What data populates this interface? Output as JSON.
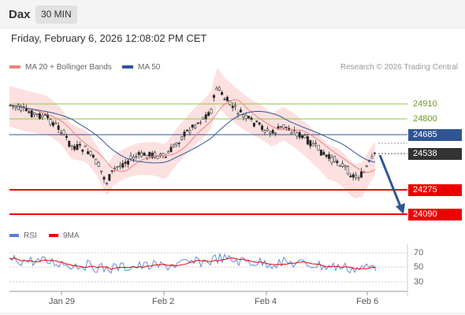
{
  "header": {
    "symbol": "Dax",
    "timeframe": "30 MIN",
    "datetime": "Friday, February 6, 2026 12:08:02 PM CET"
  },
  "legend": {
    "ma20": "MA 20 + Bollinger Bands",
    "ma50": "MA 50",
    "credit": "Research © 2026 Trading Central"
  },
  "levels": {
    "r2": "24910",
    "r1": "24800",
    "pivot": "24685",
    "last": "24538",
    "s1": "24275",
    "s2": "24090"
  },
  "rsi_legend": {
    "rsi": "RSI",
    "ma": "9MA"
  },
  "rsi_axis": {
    "t70": "70",
    "t50": "50",
    "t30": "30"
  },
  "x_axis": {
    "d1": "Jan 29",
    "d2": "Feb 2",
    "d3": "Feb 4",
    "d4": "Feb 6"
  },
  "colors": {
    "up": "#3a3a3a",
    "down": "#222",
    "ma20": "#f08080",
    "ma50": "#2f5597",
    "band": "#fcd6d6",
    "resistance": "#8ec63f",
    "pivot": "#2f5597",
    "support": "#ee0000",
    "arrow": "#2f5597"
  }
}
